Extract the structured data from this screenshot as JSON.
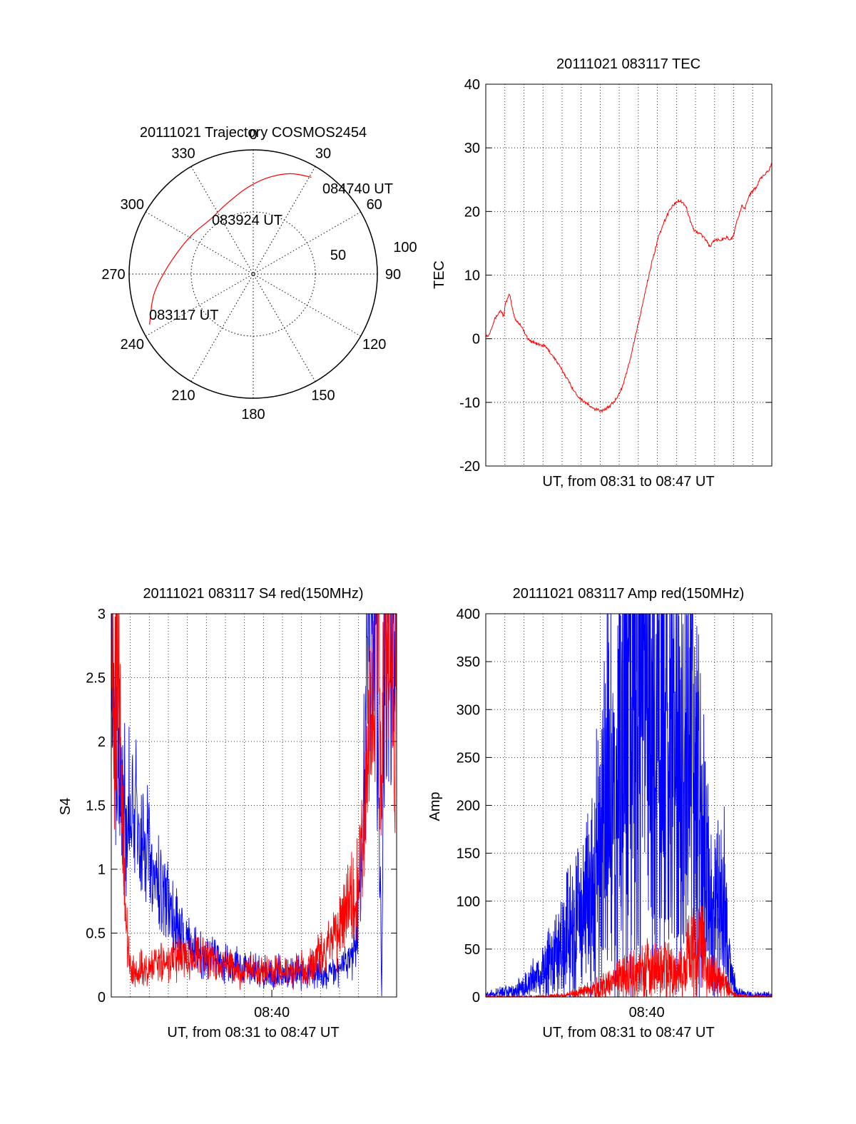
{
  "chart_data": [
    {
      "type": "polar",
      "title": "20111021 Trajectory COSMOS2454",
      "azimuth_labels": [
        "0",
        "30",
        "60",
        "90",
        "120",
        "150",
        "180",
        "210",
        "240",
        "270",
        "300",
        "330"
      ],
      "elevation_labels": [
        "50",
        "100"
      ],
      "trajectory": {
        "color": "#ff0000",
        "start_label": "083117 UT",
        "mid_label": "083924 UT",
        "end_label": "084740 UT",
        "points": [
          {
            "az": 244,
            "r": 93
          },
          {
            "az": 258,
            "r": 82
          },
          {
            "az": 272,
            "r": 71
          },
          {
            "az": 290,
            "r": 62
          },
          {
            "az": 305,
            "r": 58
          },
          {
            "az": 322,
            "r": 56
          },
          {
            "az": 338,
            "r": 60
          },
          {
            "az": 355,
            "r": 69
          },
          {
            "az": 8,
            "r": 78
          },
          {
            "az": 20,
            "r": 86
          },
          {
            "az": 31,
            "r": 91
          }
        ]
      }
    },
    {
      "type": "line",
      "title": "20111021 083117 TEC",
      "xlabel": "UT, from 08:31 to 08:47 UT",
      "ylabel": "TEC",
      "xlim": [
        8.5167,
        8.7833
      ],
      "ylim": [
        -20,
        40
      ],
      "yticks": [
        "-20",
        "-10",
        "0",
        "10",
        "20",
        "30",
        "40"
      ],
      "grid": true,
      "series": [
        {
          "color": "#ff0000",
          "x": [
            8.5194,
            8.5247,
            8.5306,
            8.5333,
            8.535,
            8.5389,
            8.5417,
            8.5444,
            8.55,
            8.5556,
            8.5639,
            8.5722,
            8.5806,
            8.5917,
            8.6,
            8.6056,
            8.6111,
            8.6167,
            8.625,
            8.6306,
            8.6361,
            8.6444,
            8.65,
            8.6556,
            8.6611,
            8.6667,
            8.6722,
            8.6778,
            8.6833,
            8.6889,
            8.6944,
            8.6972,
            8.7028,
            8.7056,
            8.7083,
            8.7111,
            8.7167,
            8.7222,
            8.725,
            8.7306,
            8.7361,
            8.7417,
            8.7444,
            8.7472,
            8.75,
            8.7556,
            8.7583,
            8.7611,
            8.7639,
            8.7667,
            8.7694,
            8.7722,
            8.775,
            8.7778,
            8.7806,
            8.7833
          ],
          "y": [
            0.5,
            3.0,
            4.5,
            3.5,
            5.5,
            7.0,
            4.5,
            3.0,
            2.0,
            0.0,
            -0.8,
            -1.2,
            -3.0,
            -6.0,
            -8.5,
            -9.5,
            -10.2,
            -11.0,
            -11.3,
            -10.8,
            -10.0,
            -7.5,
            -4.0,
            0.0,
            4.0,
            8.5,
            12.5,
            16.0,
            18.5,
            20.5,
            21.5,
            21.8,
            21.0,
            19.5,
            18.0,
            17.0,
            16.5,
            15.5,
            14.5,
            15.5,
            15.5,
            16.0,
            15.5,
            16.0,
            18.0,
            21.0,
            20.5,
            22.0,
            23.0,
            23.5,
            24.0,
            25.0,
            25.5,
            26.0,
            26.5,
            27.5
          ]
        }
      ]
    },
    {
      "type": "line",
      "title": "20111021 083117 S4 red(150MHz)",
      "xlabel": "UT, from 08:31 to 08:47 UT",
      "ylabel": "S4",
      "xlim": [
        8.5167,
        8.7833
      ],
      "ylim": [
        0,
        3
      ],
      "yticks": [
        "0",
        "0.5",
        "1",
        "1.5",
        "2",
        "2.5",
        "3"
      ],
      "xtick_label": "08:40",
      "xtick_value": 8.6667,
      "grid": true,
      "series": [
        {
          "color": "#0000ff",
          "x": [
            8.5167,
            8.5222,
            8.5278,
            8.5333,
            8.5389,
            8.5444,
            8.55,
            8.5556,
            8.5611,
            8.5667,
            8.5722,
            8.5778,
            8.5833,
            8.5889,
            8.5944,
            8.6,
            8.6083,
            8.6167,
            8.625,
            8.6333,
            8.6417,
            8.65,
            8.6583,
            8.6667,
            8.675,
            8.6833,
            8.6917,
            8.7,
            8.7083,
            8.7167,
            8.7222,
            8.7278,
            8.7333,
            8.7389,
            8.7444,
            8.7472,
            8.75,
            8.7528,
            8.7556,
            8.7583,
            8.7611,
            8.7639,
            8.7667,
            8.7694,
            8.7722,
            8.775,
            8.7778,
            8.7806,
            8.7833
          ],
          "y": [
            2.8,
            1.7,
            1.5,
            1.4,
            1.35,
            1.2,
            1.1,
            0.95,
            0.85,
            0.75,
            0.65,
            0.55,
            0.45,
            0.4,
            0.35,
            0.32,
            0.3,
            0.28,
            0.27,
            0.25,
            0.22,
            0.2,
            0.2,
            0.19,
            0.2,
            0.2,
            0.19,
            0.2,
            0.2,
            0.18,
            0.18,
            0.2,
            0.25,
            0.3,
            0.4,
            0.6,
            1.0,
            1.6,
            2.4,
            3.0,
            2.5,
            3.0,
            1.5,
            0.0,
            3.0,
            2.6,
            3.0,
            2.8,
            3.0
          ]
        },
        {
          "color": "#ff0000",
          "x": [
            8.5167,
            8.5194,
            8.5222,
            8.525,
            8.5278,
            8.5306,
            8.5333,
            8.5361,
            8.5389,
            8.5417,
            8.5444,
            8.5472,
            8.55,
            8.5556,
            8.5611,
            8.5667,
            8.5722,
            8.5778,
            8.5833,
            8.5917,
            8.6,
            8.6083,
            8.6167,
            8.625,
            8.6333,
            8.6417,
            8.65,
            8.6583,
            8.6667,
            8.675,
            8.6833,
            8.6917,
            8.7,
            8.7083,
            8.7167,
            8.7222,
            8.7278,
            8.7333,
            8.7389,
            8.7444,
            8.75,
            8.7528,
            8.7556,
            8.7583,
            8.7611,
            8.7639,
            8.7667,
            8.7694,
            8.7722,
            8.775,
            8.7778,
            8.7806,
            8.7833
          ],
          "y": [
            3.0,
            2.4,
            3.0,
            2.0,
            1.2,
            0.6,
            0.3,
            0.2,
            0.18,
            0.2,
            0.22,
            0.25,
            0.2,
            0.25,
            0.3,
            0.28,
            0.25,
            0.3,
            0.3,
            0.3,
            0.35,
            0.3,
            0.25,
            0.28,
            0.2,
            0.2,
            0.22,
            0.18,
            0.2,
            0.2,
            0.2,
            0.22,
            0.25,
            0.3,
            0.35,
            0.45,
            0.5,
            0.6,
            0.7,
            0.8,
            1.0,
            1.3,
            1.6,
            2.0,
            2.3,
            2.6,
            2.8,
            1.5,
            3.0,
            2.4,
            2.8,
            2.2,
            2.6
          ]
        }
      ]
    },
    {
      "type": "line",
      "title": "20111021 083117 Amp red(150MHz)",
      "xlabel": "UT, from 08:31 to 08:47 UT",
      "ylabel": "Amp",
      "xlim": [
        8.5167,
        8.7833
      ],
      "ylim": [
        0,
        400
      ],
      "yticks": [
        "0",
        "50",
        "100",
        "150",
        "200",
        "250",
        "300",
        "350",
        "400"
      ],
      "xtick_label": "08:40",
      "xtick_value": 8.6667,
      "grid": true,
      "series": [
        {
          "color": "#0000ff",
          "x": [
            8.5167,
            8.525,
            8.5333,
            8.5417,
            8.55,
            8.5583,
            8.5667,
            8.575,
            8.5833,
            8.5917,
            8.6,
            8.6083,
            8.6167,
            8.625,
            8.6333,
            8.6417,
            8.65,
            8.6583,
            8.6667,
            8.675,
            8.6833,
            8.6917,
            8.6972,
            8.7,
            8.7056,
            8.7111,
            8.7167,
            8.7222,
            8.7278,
            8.7333,
            8.7389,
            8.7444,
            8.75,
            8.7583,
            8.7667,
            8.775,
            8.7833
          ],
          "y": [
            2,
            3,
            5,
            6,
            10,
            15,
            25,
            35,
            45,
            60,
            70,
            85,
            110,
            180,
            220,
            250,
            280,
            340,
            300,
            290,
            330,
            230,
            250,
            230,
            280,
            240,
            160,
            120,
            80,
            90,
            100,
            30,
            5,
            3,
            2,
            3,
            2
          ]
        },
        {
          "color": "#ff0000",
          "x": [
            8.5167,
            8.5333,
            8.55,
            8.5667,
            8.5833,
            8.6,
            8.6167,
            8.625,
            8.6333,
            8.6417,
            8.65,
            8.6583,
            8.6667,
            8.675,
            8.6833,
            8.6917,
            8.7,
            8.7056,
            8.7111,
            8.7167,
            8.7222,
            8.7278,
            8.7333,
            8.7389,
            8.7444,
            8.75,
            8.7667,
            8.7833
          ],
          "y": [
            0,
            0,
            0,
            0,
            1,
            3,
            8,
            12,
            15,
            20,
            22,
            25,
            28,
            27,
            30,
            25,
            30,
            40,
            45,
            55,
            30,
            22,
            18,
            15,
            5,
            1,
            0,
            0
          ]
        }
      ]
    }
  ]
}
